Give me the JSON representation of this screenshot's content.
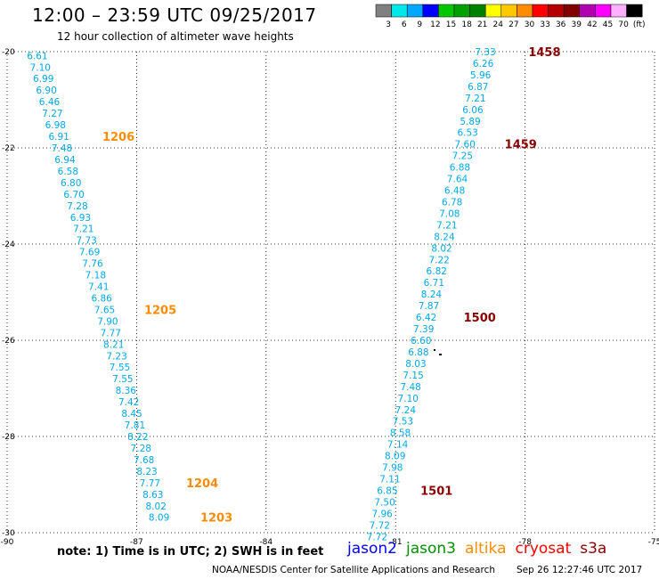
{
  "header": {
    "title": "12:00 – 23:59 UTC 09/25/2017",
    "subtitle": "12 hour collection of altimeter wave heights"
  },
  "colorbar": {
    "labels": [
      "3",
      "6",
      "9",
      "12",
      "15",
      "18",
      "21",
      "24",
      "27",
      "30",
      "33",
      "36",
      "39",
      "42",
      "45",
      "70",
      "(ft)"
    ],
    "colors": [
      "#808080",
      "#00e8e8",
      "#00a8ff",
      "#0000ff",
      "#00c800",
      "#00a000",
      "#008000",
      "#ffff00",
      "#ffc800",
      "#ff8c00",
      "#ff0000",
      "#b40000",
      "#800000",
      "#b000b0",
      "#ff00ff",
      "#ffb0ff",
      "#000000"
    ]
  },
  "footer": {
    "note": "note: 1) Time is in UTC; 2) SWH is in feet",
    "credit": "NOAA/NESDIS Center for Satellite Applications and Research",
    "timestamp": "Sep 26 12:27:46 UTC 2017"
  },
  "legend": [
    {
      "name": "jason2",
      "color": "#0000ff"
    },
    {
      "name": "jason3",
      "color": "#009000"
    },
    {
      "name": "altika",
      "color": "#ff8c00"
    },
    {
      "name": "cryosat",
      "color": "#ff0000"
    },
    {
      "name": "s3a",
      "color": "#8b0000"
    }
  ],
  "chart_data": {
    "type": "scatter",
    "xlim": [
      -90,
      -75
    ],
    "ylim": [
      -30,
      -20
    ],
    "xticks": [
      "-90",
      "-87",
      "-84",
      "-81",
      "-78",
      "-75"
    ],
    "yticks": [
      "-20",
      "-22",
      "-24",
      "-26",
      "-28",
      "-30"
    ],
    "grid": true,
    "value_color": "#00a8e8",
    "series": [
      {
        "satellite": "altika",
        "color": "#ff8c00",
        "points": [
          {
            "lon": -89.3,
            "lat": -20.08,
            "v": "6.61"
          },
          {
            "lon": -89.23,
            "lat": -20.32,
            "v": "7.10"
          },
          {
            "lon": -89.16,
            "lat": -20.56,
            "v": "6.99"
          },
          {
            "lon": -89.09,
            "lat": -20.8,
            "v": "6.90"
          },
          {
            "lon": -89.02,
            "lat": -21.04,
            "v": "6.46"
          },
          {
            "lon": -88.95,
            "lat": -21.28,
            "v": "7.27"
          },
          {
            "lon": -88.88,
            "lat": -21.52,
            "v": "6.98"
          },
          {
            "lon": -88.8,
            "lat": -21.76,
            "v": "6.91"
          },
          {
            "lon": -88.73,
            "lat": -22.0,
            "v": "7.48"
          },
          {
            "lon": -88.66,
            "lat": -22.24,
            "v": "6.94"
          },
          {
            "lon": -88.59,
            "lat": -22.48,
            "v": "6.58"
          },
          {
            "lon": -88.52,
            "lat": -22.72,
            "v": "6.80"
          },
          {
            "lon": -88.45,
            "lat": -22.96,
            "v": "6.70"
          },
          {
            "lon": -88.37,
            "lat": -23.2,
            "v": "7.28"
          },
          {
            "lon": -88.3,
            "lat": -23.44,
            "v": "6.93"
          },
          {
            "lon": -88.23,
            "lat": -23.68,
            "v": "7.21"
          },
          {
            "lon": -88.16,
            "lat": -23.92,
            "v": "7.73"
          },
          {
            "lon": -88.09,
            "lat": -24.16,
            "v": "7.69"
          },
          {
            "lon": -88.02,
            "lat": -24.4,
            "v": "7.76"
          },
          {
            "lon": -87.95,
            "lat": -24.64,
            "v": "7.18"
          },
          {
            "lon": -87.88,
            "lat": -24.88,
            "v": "7.41"
          },
          {
            "lon": -87.81,
            "lat": -25.12,
            "v": "6.86"
          },
          {
            "lon": -87.74,
            "lat": -25.36,
            "v": "7.65"
          },
          {
            "lon": -87.67,
            "lat": -25.6,
            "v": "7.90"
          },
          {
            "lon": -87.6,
            "lat": -25.84,
            "v": "7.77"
          },
          {
            "lon": -87.53,
            "lat": -26.08,
            "v": "8.21"
          },
          {
            "lon": -87.46,
            "lat": -26.32,
            "v": "7.23"
          },
          {
            "lon": -87.39,
            "lat": -26.56,
            "v": "7.55"
          },
          {
            "lon": -87.32,
            "lat": -26.8,
            "v": "7.55"
          },
          {
            "lon": -87.25,
            "lat": -27.04,
            "v": "8.36"
          },
          {
            "lon": -87.18,
            "lat": -27.28,
            "v": "7.42"
          },
          {
            "lon": -87.11,
            "lat": -27.52,
            "v": "8.45"
          },
          {
            "lon": -87.04,
            "lat": -27.76,
            "v": "7.81"
          },
          {
            "lon": -86.97,
            "lat": -28.0,
            "v": "8.22"
          },
          {
            "lon": -86.9,
            "lat": -28.24,
            "v": "7.28"
          },
          {
            "lon": -86.83,
            "lat": -28.48,
            "v": "7.68"
          },
          {
            "lon": -86.76,
            "lat": -28.72,
            "v": "8.23"
          },
          {
            "lon": -86.69,
            "lat": -28.96,
            "v": "7.77"
          },
          {
            "lon": -86.62,
            "lat": -29.2,
            "v": "8.63"
          },
          {
            "lon": -86.55,
            "lat": -29.44,
            "v": "8.02"
          },
          {
            "lon": -86.48,
            "lat": -29.68,
            "v": "8.09"
          }
        ],
        "time_labels": [
          {
            "lon": -87.42,
            "lat": -21.76,
            "t": "1206"
          },
          {
            "lon": -86.45,
            "lat": -25.36,
            "t": "1205"
          },
          {
            "lon": -85.48,
            "lat": -28.96,
            "t": "1204"
          },
          {
            "lon": -85.15,
            "lat": -29.68,
            "t": "1203"
          }
        ]
      },
      {
        "satellite": "s3a",
        "color": "#8b0000",
        "points": [
          {
            "lon": -78.92,
            "lat": -20.0,
            "v": "7.33"
          },
          {
            "lon": -78.97,
            "lat": -20.24,
            "v": "6.26"
          },
          {
            "lon": -79.03,
            "lat": -20.48,
            "v": "5.96"
          },
          {
            "lon": -79.09,
            "lat": -20.72,
            "v": "6.87"
          },
          {
            "lon": -79.15,
            "lat": -20.96,
            "v": "7.21"
          },
          {
            "lon": -79.21,
            "lat": -21.2,
            "v": "6.06"
          },
          {
            "lon": -79.27,
            "lat": -21.44,
            "v": "5.89"
          },
          {
            "lon": -79.33,
            "lat": -21.68,
            "v": "6.53"
          },
          {
            "lon": -79.39,
            "lat": -21.92,
            "v": "7.60"
          },
          {
            "lon": -79.45,
            "lat": -22.16,
            "v": "7.25"
          },
          {
            "lon": -79.51,
            "lat": -22.4,
            "v": "6.88"
          },
          {
            "lon": -79.57,
            "lat": -22.64,
            "v": "7.64"
          },
          {
            "lon": -79.63,
            "lat": -22.88,
            "v": "6.48"
          },
          {
            "lon": -79.69,
            "lat": -23.12,
            "v": "6.78"
          },
          {
            "lon": -79.75,
            "lat": -23.36,
            "v": "7.08"
          },
          {
            "lon": -79.81,
            "lat": -23.6,
            "v": "7.21"
          },
          {
            "lon": -79.87,
            "lat": -23.84,
            "v": "8.24"
          },
          {
            "lon": -79.93,
            "lat": -24.08,
            "v": "8.02"
          },
          {
            "lon": -79.99,
            "lat": -24.32,
            "v": "7.22"
          },
          {
            "lon": -80.05,
            "lat": -24.56,
            "v": "6.82"
          },
          {
            "lon": -80.11,
            "lat": -24.8,
            "v": "6.71"
          },
          {
            "lon": -80.17,
            "lat": -25.04,
            "v": "8.24"
          },
          {
            "lon": -80.23,
            "lat": -25.28,
            "v": "7.87"
          },
          {
            "lon": -80.29,
            "lat": -25.52,
            "v": "6.42"
          },
          {
            "lon": -80.35,
            "lat": -25.76,
            "v": "7.39"
          },
          {
            "lon": -80.41,
            "lat": -26.0,
            "v": "6.60"
          },
          {
            "lon": -80.47,
            "lat": -26.24,
            "v": "6.88"
          },
          {
            "lon": -80.53,
            "lat": -26.48,
            "v": "8.03"
          },
          {
            "lon": -80.59,
            "lat": -26.72,
            "v": "7.15"
          },
          {
            "lon": -80.65,
            "lat": -26.96,
            "v": "7.48"
          },
          {
            "lon": -80.71,
            "lat": -27.2,
            "v": "7.10"
          },
          {
            "lon": -80.77,
            "lat": -27.44,
            "v": "7.24"
          },
          {
            "lon": -80.83,
            "lat": -27.68,
            "v": "7.53"
          },
          {
            "lon": -80.89,
            "lat": -27.92,
            "v": "8.58"
          },
          {
            "lon": -80.95,
            "lat": -28.16,
            "v": "7.14"
          },
          {
            "lon": -81.01,
            "lat": -28.4,
            "v": "8.09"
          },
          {
            "lon": -81.07,
            "lat": -28.64,
            "v": "7.98"
          },
          {
            "lon": -81.13,
            "lat": -28.88,
            "v": "7.11"
          },
          {
            "lon": -81.19,
            "lat": -29.12,
            "v": "6.85"
          },
          {
            "lon": -81.25,
            "lat": -29.36,
            "v": "7.50"
          },
          {
            "lon": -81.31,
            "lat": -29.6,
            "v": "7.96"
          },
          {
            "lon": -81.37,
            "lat": -29.84,
            "v": "7.72"
          },
          {
            "lon": -81.43,
            "lat": -30.08,
            "v": "7.72"
          }
        ],
        "time_labels": [
          {
            "lon": -77.55,
            "lat": -20.0,
            "t": "1458"
          },
          {
            "lon": -78.1,
            "lat": -21.92,
            "t": "1459"
          },
          {
            "lon": -79.05,
            "lat": -25.52,
            "t": "1500"
          },
          {
            "lon": -80.05,
            "lat": -29.12,
            "t": "1501"
          }
        ]
      }
    ]
  }
}
